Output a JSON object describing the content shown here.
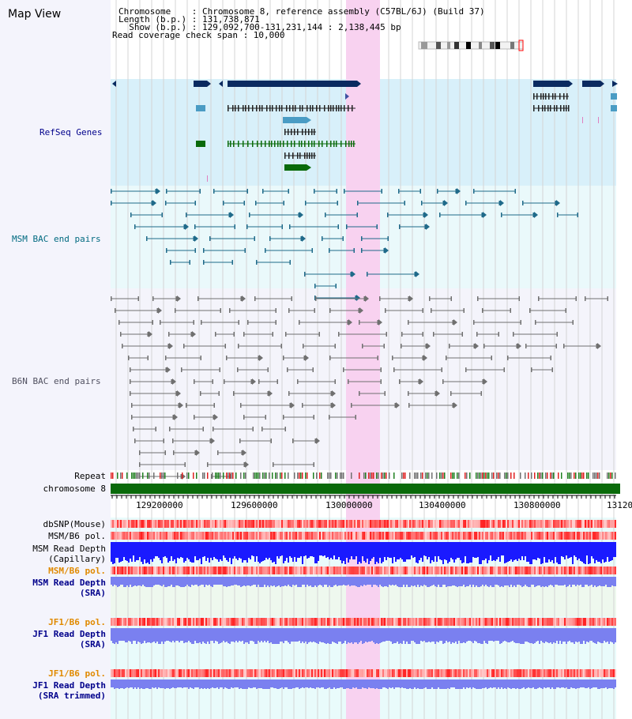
{
  "page": {
    "title": "Map View"
  },
  "header": {
    "chromosome_line": "Chromosome    : Chromosome 8, reference assembly (C57BL/6J) (Build 37)",
    "length_line": "Length (b.p.) : 131,738,871",
    "show_line": "  Show (b.p.) : 129,092,700-131,231,144 : 2,138,445 bp",
    "coverage_line": "Read coverage check span : 10,000"
  },
  "tracks": {
    "refseq": "RefSeq Genes",
    "msm_bac": "MSM BAC end pairs",
    "b6n_bac": "B6N BAC end pairs",
    "repeat": "Repeat",
    "chromosome": "chromosome 8",
    "dbsnp": "dbSNP(Mouse)",
    "msm_b6_pol_1": "MSM/B6 pol.",
    "msm_read_depth_cap_1": "MSM Read Depth",
    "msm_read_depth_cap_2": "(Capillary)",
    "msm_b6_pol_2": "MSM/B6 pol.",
    "msm_read_depth_sra_1": "MSM Read Depth",
    "msm_read_depth_sra_2": "(SRA)",
    "jf1_b6_pol_1": "JF1/B6 pol.",
    "jf1_read_depth_1": "JF1 Read Depth",
    "jf1_read_depth_2": "(SRA)",
    "jf1_b6_pol_2": "JF1/B6 pol.",
    "jf1_read_depth_trim_1": "JF1 Read Depth",
    "jf1_read_depth_trim_2": "(SRA trimmed)"
  },
  "axis": {
    "ticks": [
      "129200000",
      "129600000",
      "130000000",
      "130400000",
      "130800000",
      "13120"
    ]
  },
  "colors": {
    "refseq_bg": "#d8f0fa",
    "msm_bg": "#eaf9fb",
    "b6n_bg": "#f4f4fb",
    "highlight": "#f8d2f0",
    "gene_dark": "#0a2a60",
    "gene_teal": "#4a9cc4",
    "gene_green": "#0a6a0a",
    "msm_pair": "#1f6a8a",
    "b6n_pair": "#707070",
    "label_navy": "#00008b",
    "label_teal": "#006a80",
    "label_orange": "#e08a00",
    "read_depth_blue": "#1a1aff",
    "read_depth_light": "#7a80f0"
  }
}
